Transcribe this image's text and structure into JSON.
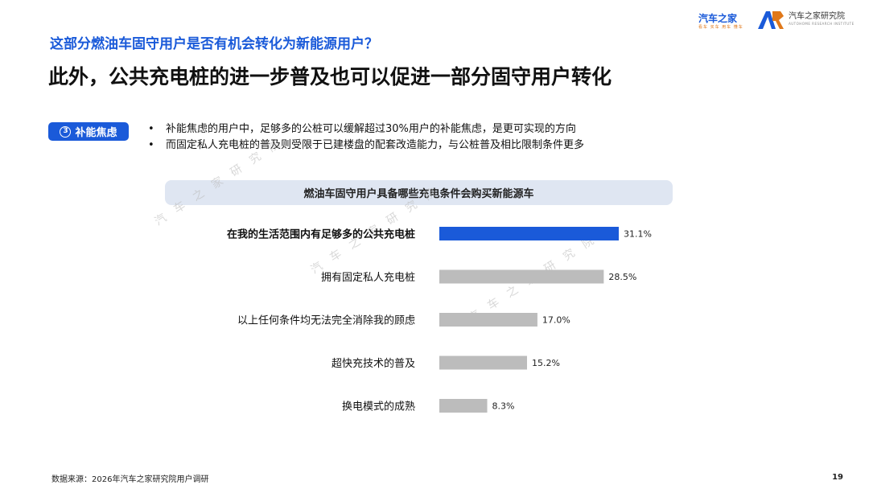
{
  "header": {
    "question": "这部分燃油车固守用户是否有机会转化为新能源用户？",
    "headline": "此外，公共充电桩的进一步普及也可以促进一部分固守用户转化"
  },
  "logos": {
    "autohome_name": "汽车之家",
    "autohome_tagline": "看车 买车 用车 懂车",
    "institute_name": "汽车之家研究院",
    "institute_tagline": "AUTOHOME RESEARCH INSTITUTE"
  },
  "section": {
    "badge_number": "3",
    "badge_label": "补能焦虑",
    "bullets": [
      "补能焦虑的用户中，足够多的公桩可以缓解超过30%用户的补能焦虑，是更可实现的方向",
      "而固定私人充电桩的普及则受限于已建楼盘的配套改造能力，与公桩普及相比限制条件更多"
    ]
  },
  "watermark": "汽车之家研究院",
  "colors": {
    "brand_blue": "#1a5ad9",
    "highlight_bar": "#1a5ad9",
    "default_bar": "#bcbcbc",
    "header_band": "#dfe6f2"
  },
  "chart_data": {
    "type": "bar",
    "orientation": "horizontal",
    "title": "燃油车固守用户具备哪些充电条件会购买新能源车",
    "categories": [
      "在我的生活范围内有足够多的公共充电桩",
      "拥有固定私人充电桩",
      "以上任何条件均无法完全消除我的顾虑",
      "超快充技术的普及",
      "换电模式的成熟"
    ],
    "values": [
      31.1,
      28.5,
      17.0,
      15.2,
      8.3
    ],
    "value_labels": [
      "31.1%",
      "28.5%",
      "17.0%",
      "15.2%",
      "8.3%"
    ],
    "highlighted_index": 0,
    "unit": "%",
    "xlim": [
      0,
      31.1
    ],
    "grid": false,
    "legend": "none"
  },
  "footer": {
    "source": "数据来源：2026年汽车之家研究院用户调研",
    "page_number": "19"
  }
}
